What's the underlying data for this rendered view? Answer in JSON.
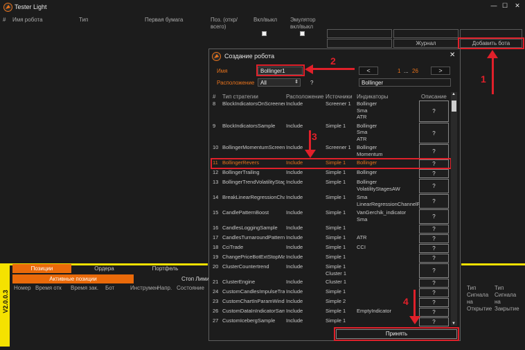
{
  "app": {
    "title": "Tester Light",
    "version": "V2.0.0.3"
  },
  "columns": {
    "num": "#",
    "name": "Имя робота",
    "type": "Тип",
    "security": "Первая бумага",
    "pos": "Поз. (откр/всего)",
    "onoff": "Вкл/выкл",
    "emulator": "Эмулятор вкл/выкл"
  },
  "buttons": {
    "journal": "Журнал",
    "add_bot": "Добавить бота"
  },
  "bottom": {
    "tabs": [
      "Позиции",
      "Ордера",
      "Портфель"
    ],
    "subtabs": [
      "Активные позиции",
      "Стоп Лими"
    ],
    "headers": [
      "Номер",
      "Время отк",
      "Время зак.",
      "Бот",
      "Инструмен",
      "Напр.",
      "Состояние"
    ],
    "right_headers": [
      "Тип Сигнала на Открытие",
      "Тип Сигнала на Закрытие"
    ]
  },
  "dialog": {
    "title": "Создание робота",
    "name_label": "Имя",
    "name_value": "Bollinger1",
    "location_label": "Расположение",
    "location_value": "All",
    "help": "?",
    "search_value": "Bollinger",
    "prev": "<",
    "next": ">",
    "page_current": "1",
    "page_sep": "...",
    "page_total": "26",
    "headers": {
      "num": "#",
      "type": "Тип стратегии",
      "location": "Расположение",
      "sources": "Источники",
      "indicators": "Индикаторы",
      "desc": "Описание"
    },
    "rows": [
      {
        "n": "8",
        "name": "BlockIndicatorsOnScreener",
        "loc": "Include",
        "src": [
          "Screener 1"
        ],
        "ind": [
          "Bollinger",
          "Sma",
          "ATR"
        ]
      },
      {
        "n": "9",
        "name": "BlockIndicatorsSample",
        "loc": "Include",
        "src": [
          "Simple 1"
        ],
        "ind": [
          "Bollinger",
          "Sma",
          "ATR"
        ]
      },
      {
        "n": "10",
        "name": "BollingerMomentumScreener",
        "loc": "Include",
        "src": [
          "Screener 1"
        ],
        "ind": [
          "Bollinger",
          "Momentum"
        ]
      },
      {
        "n": "11",
        "name": "BollingerRevers",
        "loc": "Include",
        "src": [
          "Simple 1"
        ],
        "ind": [
          "Bollinger"
        ]
      },
      {
        "n": "12",
        "name": "BollingerTrailing",
        "loc": "Include",
        "src": [
          "Simple 1"
        ],
        "ind": [
          "Bollinger"
        ]
      },
      {
        "n": "13",
        "name": "BollingerTrendVolatilityStages",
        "loc": "Include",
        "src": [
          "Simple 1"
        ],
        "ind": [
          "Bollinger",
          "VolatilityStagesAW"
        ]
      },
      {
        "n": "14",
        "name": "BreakLinearRegressionChannel",
        "loc": "Include",
        "src": [
          "Simple 1"
        ],
        "ind": [
          "Sma",
          "LinearRegressionChannelFa"
        ]
      },
      {
        "n": "15",
        "name": "CandlePatternBoost",
        "loc": "Include",
        "src": [
          "Simple 1"
        ],
        "ind": [
          "VanGerchik_indicator",
          "Sma"
        ]
      },
      {
        "n": "16",
        "name": "CandlesLoggingSample",
        "loc": "Include",
        "src": [
          "Simple 1"
        ],
        "ind": []
      },
      {
        "n": "17",
        "name": "CandlesTurnaroundPattern",
        "loc": "Include",
        "src": [
          "Simple 1"
        ],
        "ind": [
          "ATR"
        ]
      },
      {
        "n": "18",
        "name": "CciTrade",
        "loc": "Include",
        "src": [
          "Simple 1"
        ],
        "ind": [
          "CCI"
        ]
      },
      {
        "n": "19",
        "name": "ChangePriceBotExtStopMarket",
        "loc": "Include",
        "src": [
          "Simple 1"
        ],
        "ind": []
      },
      {
        "n": "20",
        "name": "ClusterCountertrend",
        "loc": "Include",
        "src": [
          "Simple 1",
          "Cluster 1"
        ],
        "ind": []
      },
      {
        "n": "21",
        "name": "ClusterEngine",
        "loc": "Include",
        "src": [
          "Cluster 1"
        ],
        "ind": []
      },
      {
        "n": "24",
        "name": "CustomCandlesImpulseTrade",
        "loc": "Include",
        "src": [
          "Simple 1"
        ],
        "ind": []
      },
      {
        "n": "23",
        "name": "CustomChartInParamWindow",
        "loc": "Include",
        "src": [
          "Simple 2"
        ],
        "ind": []
      },
      {
        "n": "26",
        "name": "CustomDataInIndicatorSample",
        "loc": "Include",
        "src": [
          "Simple 1"
        ],
        "ind": [
          "EmptyIndicator"
        ]
      },
      {
        "n": "27",
        "name": "CustomIcebergSample",
        "loc": "Include",
        "src": [
          "Simple 1"
        ],
        "ind": []
      }
    ],
    "accept": "Принять"
  },
  "annotations": [
    "1",
    "2",
    "3",
    "4"
  ],
  "colors": {
    "accent": "#ea6a0a",
    "annotation": "#e0202a",
    "version_bar": "#f5e200",
    "bg": "#1c1c1c"
  }
}
